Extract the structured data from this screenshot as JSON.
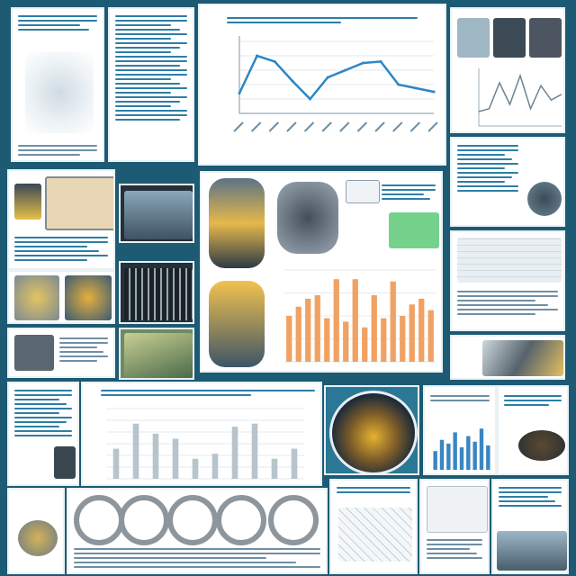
{
  "collage": {
    "description_present": false
  },
  "line_chart": {
    "chart_data": {
      "type": "line",
      "values": [
        28,
        80,
        72,
        45,
        20,
        50,
        60,
        70,
        72,
        40,
        35,
        30
      ],
      "ylim": [
        0,
        100
      ],
      "grid": true,
      "title": "",
      "xlabel": "",
      "ylabel": ""
    }
  },
  "bar_chart_orange": {
    "chart_data": {
      "type": "bar",
      "values": [
        40,
        48,
        55,
        58,
        38,
        72,
        35,
        72,
        30,
        58,
        38,
        70,
        40,
        50,
        55,
        45
      ],
      "ylim": [
        0,
        80
      ],
      "title": "",
      "xlabel": "",
      "ylabel": ""
    }
  },
  "bar_chart_gray": {
    "chart_data": {
      "type": "bar",
      "values": [
        30,
        55,
        45,
        40,
        20,
        25,
        52,
        55,
        20,
        30
      ],
      "ylim": [
        0,
        70
      ],
      "title": "",
      "xlabel": "",
      "ylabel": ""
    }
  },
  "small_bar_chart": {
    "chart_data": {
      "type": "bar",
      "values": [
        10,
        16,
        14,
        20,
        12,
        18,
        15,
        22,
        13
      ],
      "ylim": [
        0,
        25
      ],
      "title": "",
      "xlabel": "",
      "ylabel": ""
    }
  },
  "wave_chart": {
    "chart_data": {
      "type": "line",
      "values": [
        10,
        12,
        30,
        15,
        35,
        12,
        28,
        18,
        22
      ],
      "ylim": [
        0,
        40
      ],
      "title": "",
      "xlabel": "",
      "ylabel": ""
    }
  },
  "colors": {
    "background": "#1d5a73",
    "orange_bar": "#f0a264",
    "gray_bar": "#b8c4cc",
    "line": "#2d86c4"
  }
}
